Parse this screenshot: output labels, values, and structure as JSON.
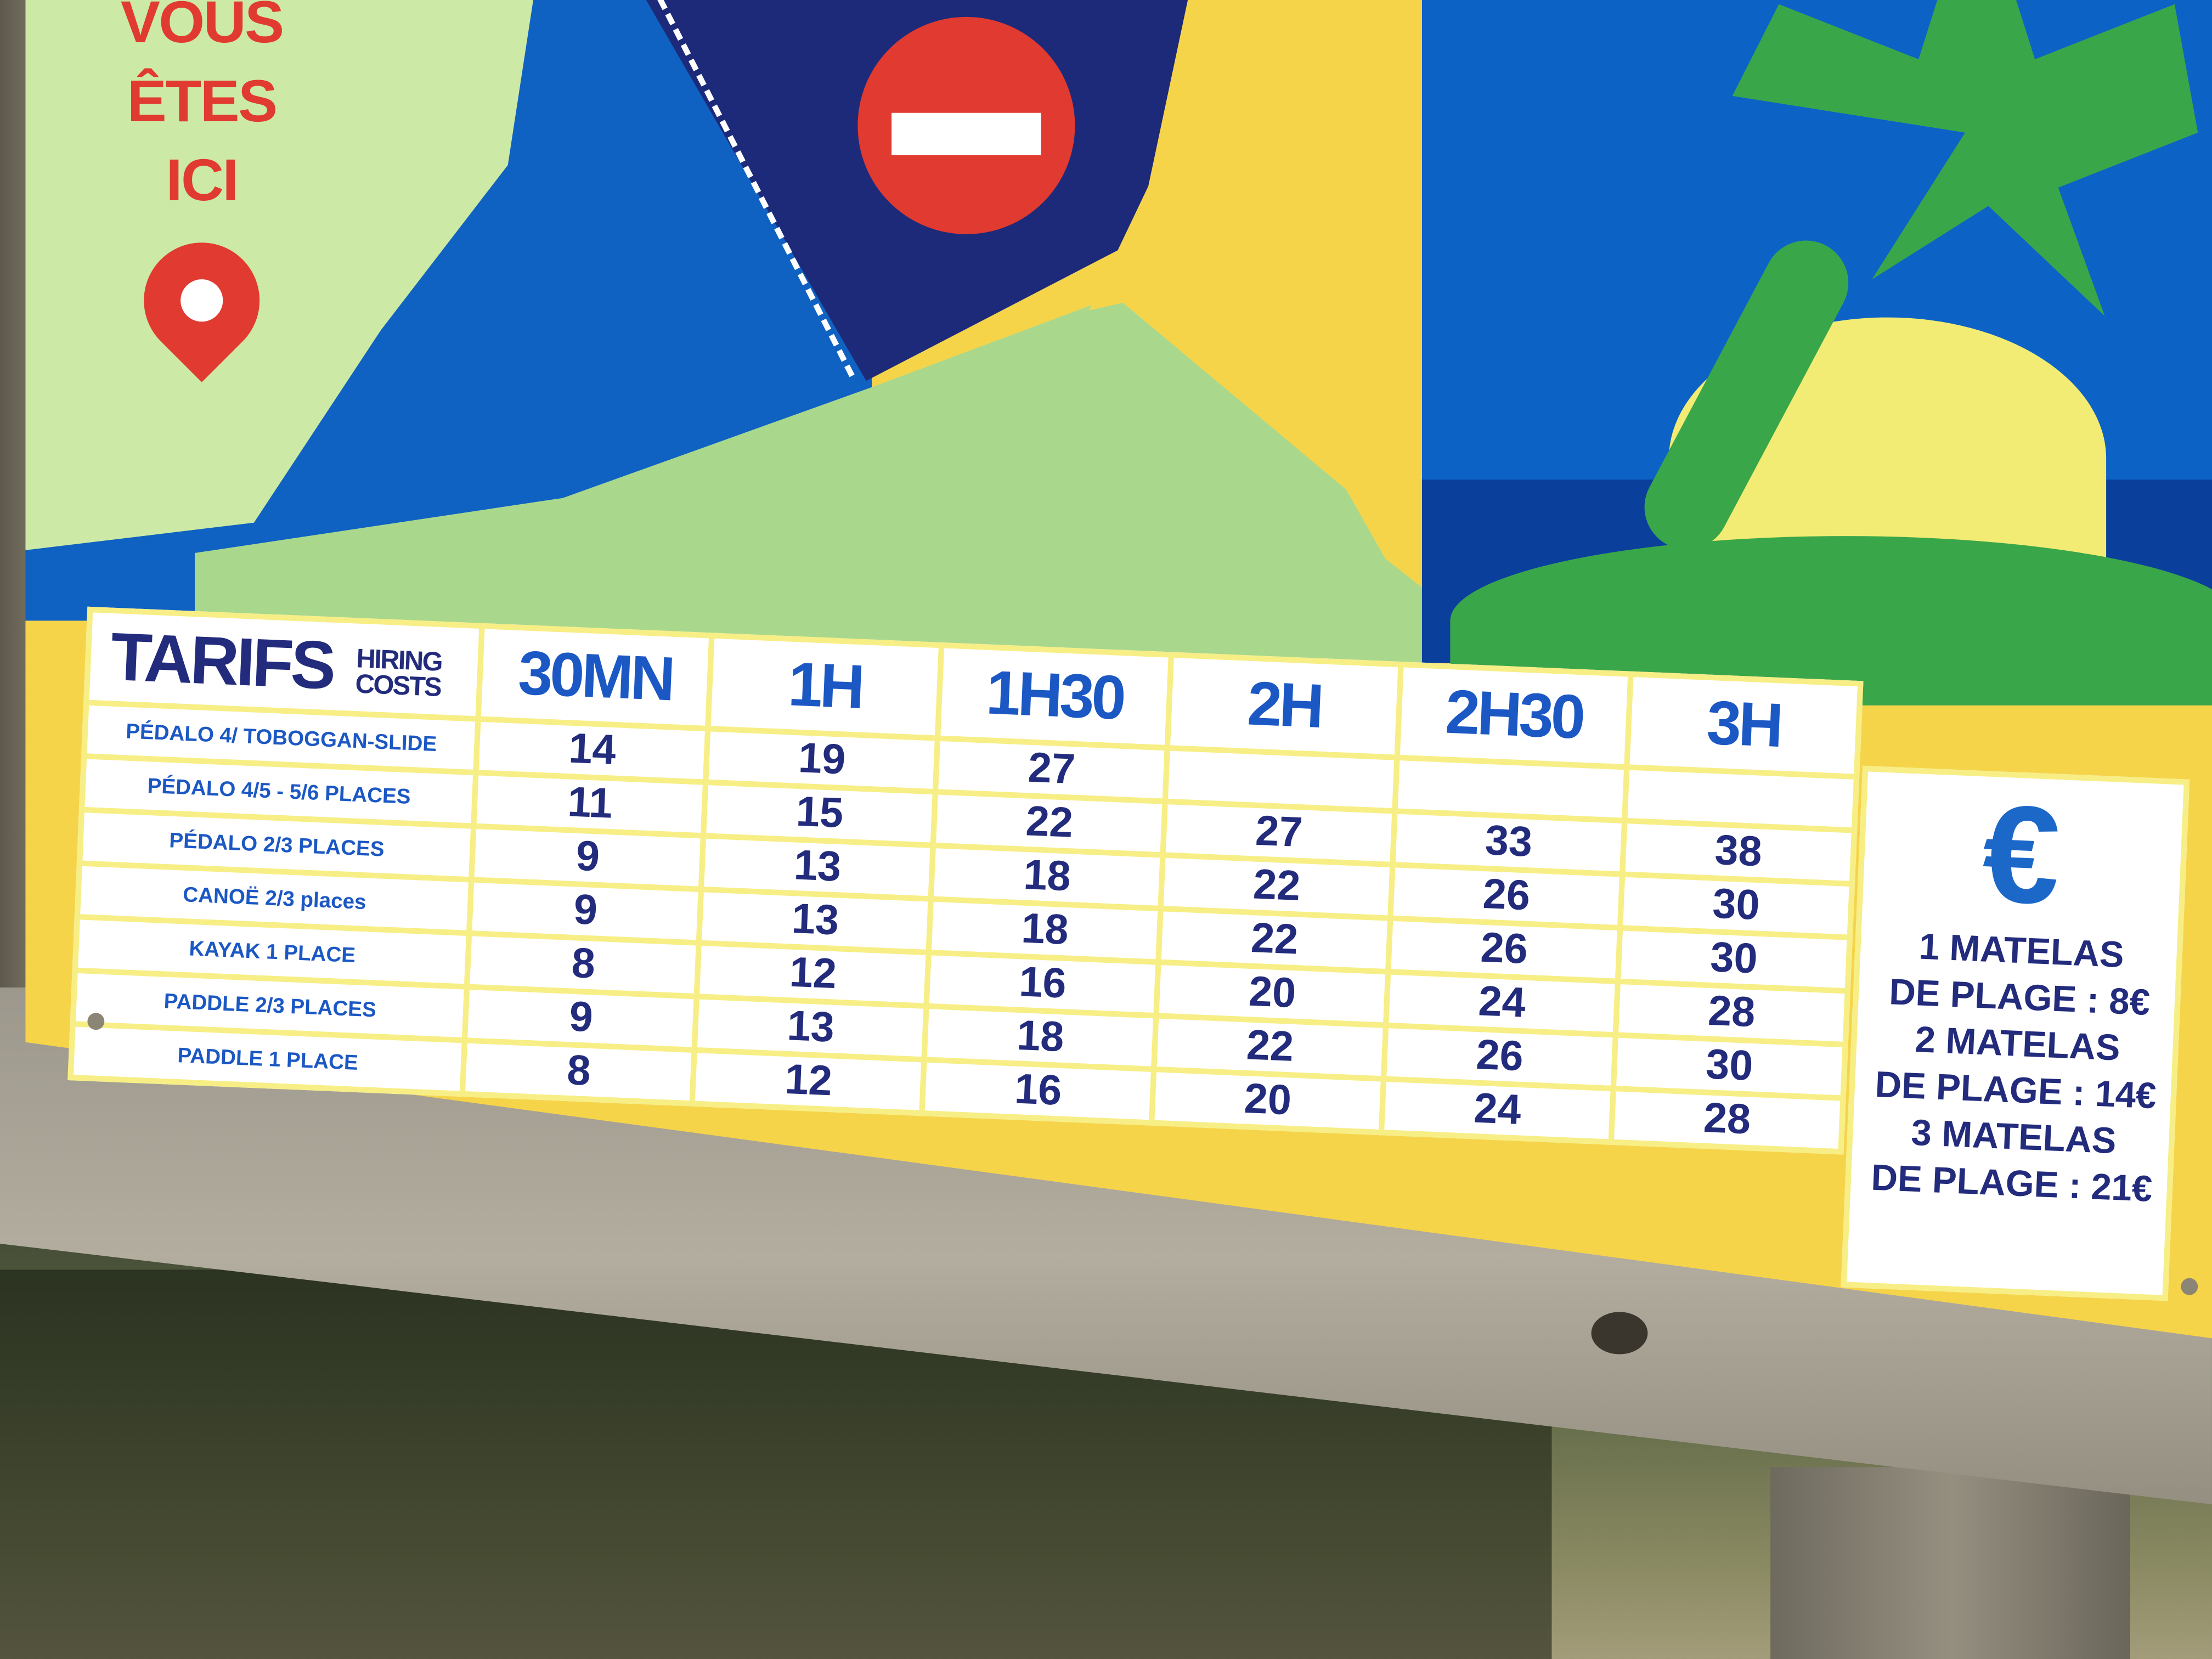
{
  "map": {
    "you_are_here": [
      "VOUS",
      "ÊTES",
      "ICI"
    ]
  },
  "table": {
    "title": "TARIFS",
    "subtitle_1": "HIRING",
    "subtitle_2": "COSTS",
    "columns": [
      "30MN",
      "1H",
      "1H30",
      "2H",
      "2H30",
      "3H"
    ],
    "rows": [
      {
        "label": "PÉDALO 4/   TOBOGGAN-SLIDE",
        "values": [
          "14",
          "19",
          "27",
          "",
          "",
          ""
        ]
      },
      {
        "label": "PÉDALO 4/5 - 5/6 PLACES",
        "values": [
          "11",
          "15",
          "22",
          "27",
          "33",
          "38"
        ]
      },
      {
        "label": "PÉDALO 2/3 PLACES",
        "values": [
          "9",
          "13",
          "18",
          "22",
          "26",
          "30"
        ]
      },
      {
        "label": "CANOË 2/3 places",
        "values": [
          "9",
          "13",
          "18",
          "22",
          "26",
          "30"
        ]
      },
      {
        "label": "KAYAK 1 PLACE",
        "values": [
          "8",
          "12",
          "16",
          "20",
          "24",
          "28"
        ]
      },
      {
        "label": "PADDLE 2/3 PLACES",
        "values": [
          "9",
          "13",
          "18",
          "22",
          "26",
          "30"
        ]
      },
      {
        "label": "PADDLE 1 PLACE",
        "values": [
          "8",
          "12",
          "16",
          "20",
          "24",
          "28"
        ]
      }
    ]
  },
  "euro_panel": {
    "symbol": "€",
    "lines": [
      "1 MATELAS",
      "DE PLAGE : 8€",
      "2 MATELAS",
      "DE PLAGE : 14€",
      "3 MATELAS",
      "DE PLAGE : 21€"
    ]
  },
  "colors": {
    "sign_yellow": "#f6d44a",
    "text_navy": "#232b7c",
    "text_blue": "#1c58c4",
    "sign_red": "#e13a30"
  }
}
